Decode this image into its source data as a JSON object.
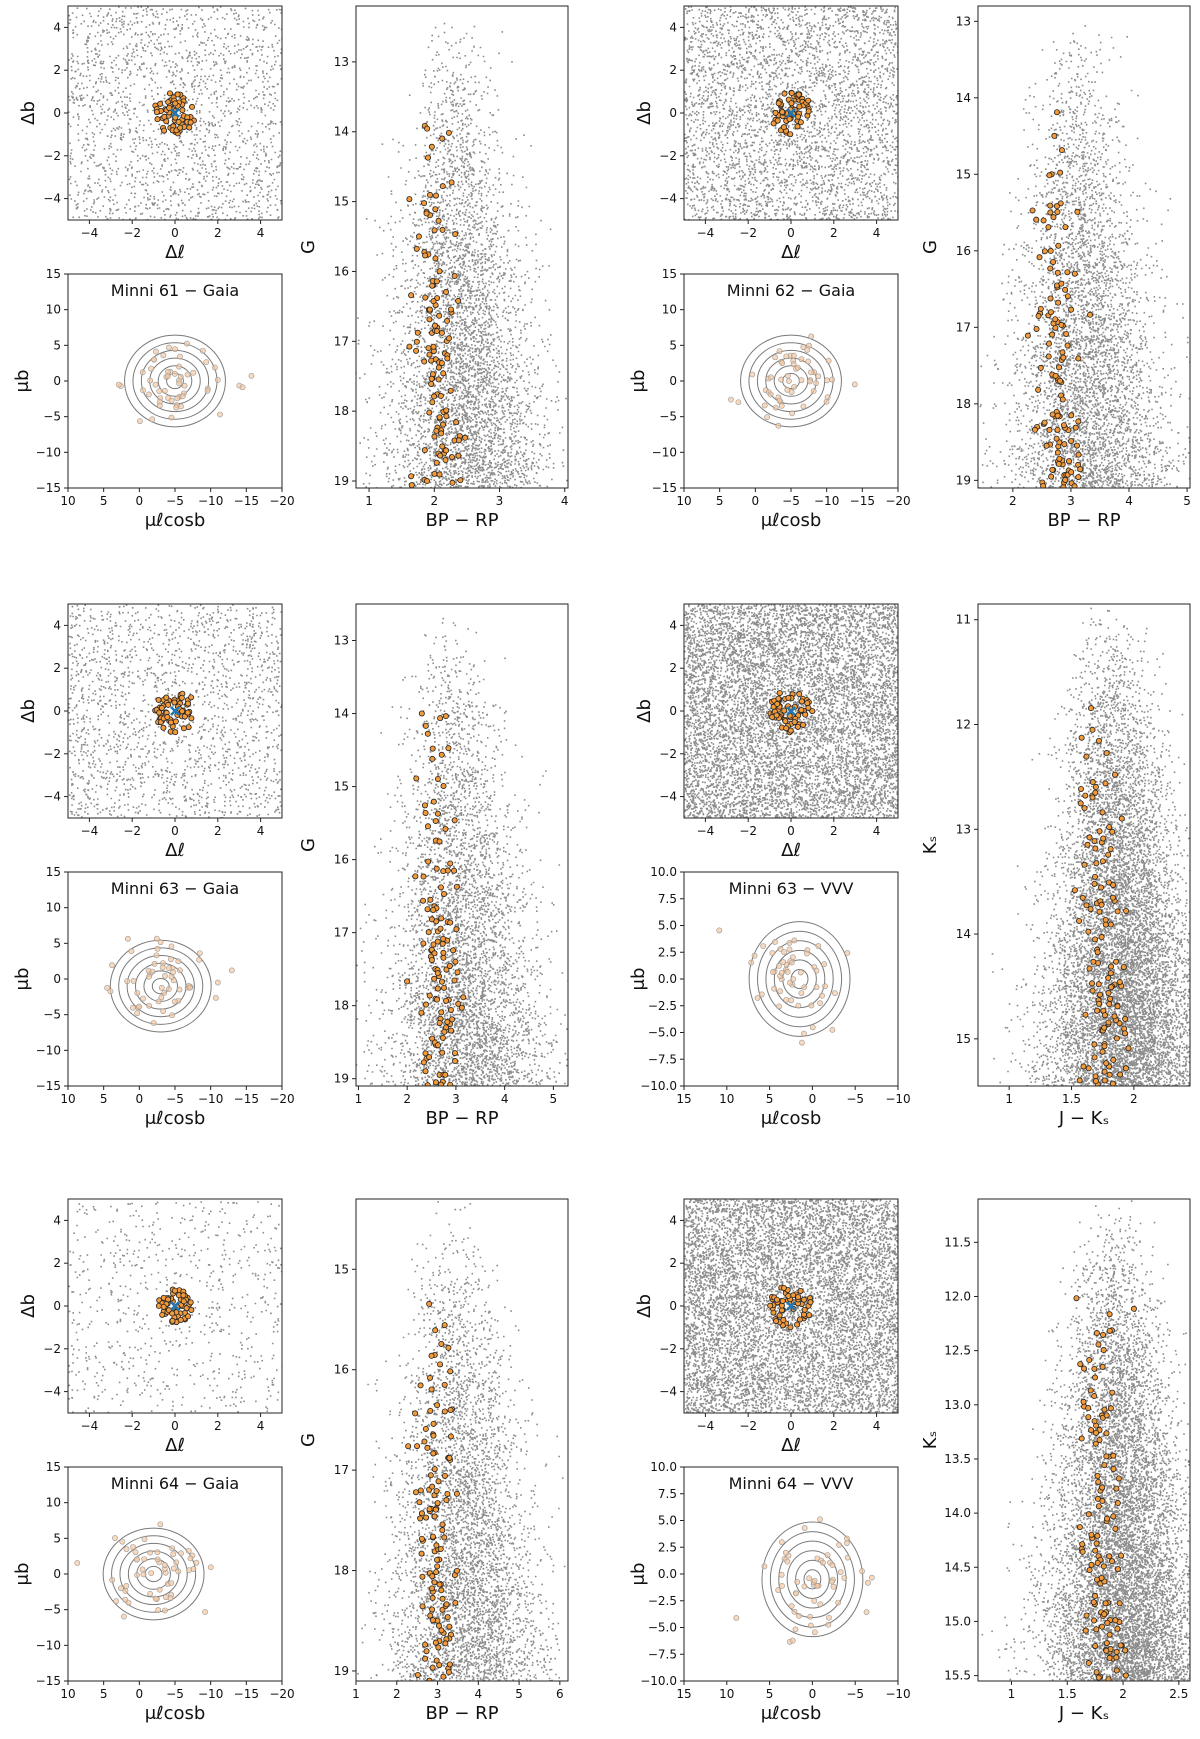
{
  "figure": {
    "panels": [
      {
        "title": "Minni 61  −  Gaia",
        "cmd_xlabel": "BP − RP",
        "cmd_ylabel": "G"
      },
      {
        "title": "Minni 62  −  Gaia",
        "cmd_xlabel": "BP − RP",
        "cmd_ylabel": "G"
      },
      {
        "title": "Minni 63  −  Gaia",
        "cmd_xlabel": "BP − RP",
        "cmd_ylabel": "G"
      },
      {
        "title": "Minni 63  −  VVV",
        "cmd_xlabel": "J − Kₛ",
        "cmd_ylabel": "Kₛ"
      },
      {
        "title": "Minni 64  −  Gaia",
        "cmd_xlabel": "BP − RP",
        "cmd_ylabel": "G"
      },
      {
        "title": "Minni 64  −  VVV",
        "cmd_xlabel": "J − Kₛ",
        "cmd_ylabel": "Kₛ"
      }
    ],
    "sky_xlabel": "Δℓ",
    "sky_ylabel": "Δb",
    "pm_xlabel": "μℓcosb",
    "pm_ylabel": "μb",
    "colors": {
      "field": "#8c8c8c",
      "members": "#f39a3a",
      "member_edge": "#222222",
      "center": "#1f77b4",
      "contour": "#7a7a7a"
    }
  },
  "chart_data": [
    {
      "type": "scatter",
      "name": "sky-minni61",
      "xlim": [
        -5,
        5
      ],
      "ylim": [
        -5,
        5
      ],
      "xticks": [
        -4,
        -2,
        0,
        2,
        4
      ],
      "yticks": [
        -4,
        -2,
        0,
        2,
        4
      ],
      "field_density": "medium",
      "members_radius": 1,
      "center": [
        0,
        0
      ]
    },
    {
      "type": "scatter",
      "name": "pm-minni61",
      "xlim": [
        10,
        -20
      ],
      "ylim": [
        -15,
        15
      ],
      "xticks": [
        10,
        5,
        0,
        -5,
        -10,
        -15,
        -20
      ],
      "yticks": [
        -15,
        -10,
        -5,
        0,
        5,
        10,
        15
      ],
      "pm_center": [
        -5,
        0
      ]
    },
    {
      "type": "scatter",
      "name": "cmd-minni61",
      "xlim": [
        0.8,
        4.05
      ],
      "ylim": [
        19.1,
        12.2
      ],
      "xticks": [
        1,
        2,
        3,
        4
      ],
      "yticks": [
        13,
        14,
        15,
        16,
        17,
        18,
        19
      ]
    },
    {
      "type": "scatter",
      "name": "sky-minni62",
      "xlim": [
        -5,
        5
      ],
      "ylim": [
        -5,
        5
      ],
      "xticks": [
        -4,
        -2,
        0,
        2,
        4
      ],
      "yticks": [
        -4,
        -2,
        0,
        2,
        4
      ],
      "field_density": "high",
      "members_radius": 1,
      "center": [
        0,
        0
      ]
    },
    {
      "type": "scatter",
      "name": "pm-minni62",
      "xlim": [
        10,
        -20
      ],
      "ylim": [
        -15,
        15
      ],
      "xticks": [
        10,
        5,
        0,
        -5,
        -10,
        -15,
        -20
      ],
      "yticks": [
        -15,
        -10,
        -5,
        0,
        5,
        10,
        15
      ],
      "pm_center": [
        -5,
        0
      ]
    },
    {
      "type": "scatter",
      "name": "cmd-minni62",
      "xlim": [
        1.4,
        5.05
      ],
      "ylim": [
        19.1,
        12.8
      ],
      "xticks": [
        2,
        3,
        4,
        5
      ],
      "yticks": [
        13,
        14,
        15,
        16,
        17,
        18,
        19
      ]
    },
    {
      "type": "scatter",
      "name": "sky-minni63-gaia",
      "xlim": [
        -5,
        5
      ],
      "ylim": [
        -5,
        5
      ],
      "xticks": [
        -4,
        -2,
        0,
        2,
        4
      ],
      "yticks": [
        -4,
        -2,
        0,
        2,
        4
      ],
      "field_density": "medium",
      "members_radius": 1,
      "center": [
        0,
        0
      ]
    },
    {
      "type": "scatter",
      "name": "pm-minni63-gaia",
      "xlim": [
        10,
        -20
      ],
      "ylim": [
        -15,
        15
      ],
      "xticks": [
        10,
        5,
        0,
        -5,
        -10,
        -15,
        -20
      ],
      "yticks": [
        -15,
        -10,
        -5,
        0,
        5,
        10,
        15
      ],
      "pm_center": [
        -3,
        -1
      ]
    },
    {
      "type": "scatter",
      "name": "cmd-minni63-gaia",
      "xlim": [
        0.95,
        5.3
      ],
      "ylim": [
        19.1,
        12.5
      ],
      "xticks": [
        1,
        2,
        3,
        4,
        5
      ],
      "yticks": [
        13,
        14,
        15,
        16,
        17,
        18,
        19
      ]
    },
    {
      "type": "scatter",
      "name": "sky-minni63-vvv",
      "xlim": [
        -5,
        5
      ],
      "ylim": [
        -5,
        5
      ],
      "xticks": [
        -4,
        -2,
        0,
        2,
        4
      ],
      "yticks": [
        -4,
        -2,
        0,
        2,
        4
      ],
      "field_density": "very-high",
      "members_radius": 1,
      "center": [
        0,
        0
      ]
    },
    {
      "type": "scatter",
      "name": "pm-minni63-vvv",
      "xlim": [
        15,
        -10
      ],
      "ylim": [
        -10,
        10
      ],
      "xticks": [
        15,
        10,
        5,
        0,
        -5,
        -10
      ],
      "yticks": [
        -10.0,
        -7.5,
        -5.0,
        -2.5,
        0.0,
        2.5,
        5.0,
        7.5,
        10.0
      ],
      "pm_center": [
        1.5,
        0
      ]
    },
    {
      "type": "scatter",
      "name": "cmd-minni63-vvv",
      "xlim": [
        0.75,
        2.45
      ],
      "ylim": [
        15.45,
        10.85
      ],
      "xticks": [
        1.0,
        1.5,
        2.0
      ],
      "yticks": [
        11,
        12,
        13,
        14,
        15
      ]
    },
    {
      "type": "scatter",
      "name": "sky-minni64-gaia",
      "xlim": [
        -5,
        5
      ],
      "ylim": [
        -5,
        5
      ],
      "xticks": [
        -4,
        -2,
        0,
        2,
        4
      ],
      "yticks": [
        -4,
        -2,
        0,
        2,
        4
      ],
      "field_density": "low",
      "members_radius": 0.8,
      "center": [
        0,
        0
      ]
    },
    {
      "type": "scatter",
      "name": "pm-minni64-gaia",
      "xlim": [
        10,
        -20
      ],
      "ylim": [
        -15,
        15
      ],
      "xticks": [
        10,
        5,
        0,
        -5,
        -10,
        -15,
        -20
      ],
      "yticks": [
        -15,
        -10,
        -5,
        0,
        5,
        10,
        15
      ],
      "pm_center": [
        -2,
        0
      ]
    },
    {
      "type": "scatter",
      "name": "cmd-minni64-gaia",
      "xlim": [
        1.0,
        6.2
      ],
      "ylim": [
        19.1,
        14.3
      ],
      "xticks": [
        1,
        2,
        3,
        4,
        5,
        6
      ],
      "yticks": [
        15,
        16,
        17,
        18,
        19
      ]
    },
    {
      "type": "scatter",
      "name": "sky-minni64-vvv",
      "xlim": [
        -5,
        5
      ],
      "ylim": [
        -5,
        5
      ],
      "xticks": [
        -4,
        -2,
        0,
        2,
        4
      ],
      "yticks": [
        -4,
        -2,
        0,
        2,
        4
      ],
      "field_density": "very-high",
      "members_radius": 1,
      "center": [
        0,
        0
      ]
    },
    {
      "type": "scatter",
      "name": "pm-minni64-vvv",
      "xlim": [
        15,
        -10
      ],
      "ylim": [
        -10,
        10
      ],
      "xticks": [
        15,
        10,
        5,
        0,
        -5,
        -10
      ],
      "yticks": [
        -10.0,
        -7.5,
        -5.0,
        -2.5,
        0.0,
        2.5,
        5.0,
        7.5,
        10.0
      ],
      "pm_center": [
        0,
        -0.5
      ]
    },
    {
      "type": "scatter",
      "name": "cmd-minni64-vvv",
      "xlim": [
        0.7,
        2.6
      ],
      "ylim": [
        15.55,
        11.1
      ],
      "xticks": [
        1.0,
        1.5,
        2.0,
        2.5
      ],
      "yticks": [
        11.5,
        12.0,
        12.5,
        13.0,
        13.5,
        14.0,
        14.5,
        15.0,
        15.5
      ]
    }
  ]
}
